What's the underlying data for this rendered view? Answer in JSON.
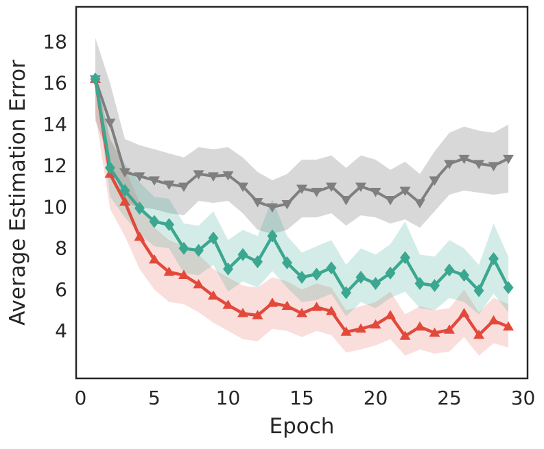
{
  "figure": {
    "background": "#ffffff"
  },
  "chart_data": {
    "type": "line",
    "title": "",
    "xlabel": "Epoch",
    "ylabel": "Average Estimation Error",
    "xlim": [
      -0.3,
      30.3
    ],
    "ylim": [
      1.7,
      19.7
    ],
    "xticks": [
      0,
      5,
      10,
      15,
      20,
      25,
      30
    ],
    "yticks": [
      4,
      6,
      8,
      10,
      12,
      14,
      16,
      18
    ],
    "grid": false,
    "legend": "none",
    "x": [
      1,
      2,
      3,
      4,
      5,
      6,
      7,
      8,
      9,
      10,
      11,
      12,
      13,
      14,
      15,
      16,
      17,
      18,
      19,
      20,
      21,
      22,
      23,
      24,
      25,
      26,
      27,
      28,
      29
    ],
    "style": {
      "spine_color": "#262626",
      "text_color": "#262626",
      "tick_font_size": 28,
      "label_font_size": 31
    },
    "series": [
      {
        "name": "gray",
        "marker": "triangle-down",
        "color": "#7f7f7f",
        "band_opacity": 0.3,
        "line_width": 4,
        "values": [
          16.2,
          14.1,
          11.7,
          11.5,
          11.3,
          11.1,
          11.0,
          11.6,
          11.5,
          11.55,
          11.0,
          10.25,
          10.0,
          10.15,
          10.9,
          10.75,
          11.0,
          10.35,
          11.0,
          10.75,
          10.35,
          10.8,
          10.2,
          11.3,
          12.1,
          12.35,
          12.1,
          12.0,
          12.35
        ],
        "band_upper": [
          18.2,
          16.0,
          13.3,
          13.0,
          12.8,
          12.6,
          12.4,
          12.9,
          12.8,
          12.9,
          12.4,
          11.7,
          11.3,
          11.6,
          12.3,
          12.3,
          12.5,
          11.9,
          12.5,
          12.3,
          11.8,
          12.2,
          11.6,
          12.7,
          13.6,
          13.9,
          13.7,
          13.6,
          14.0
        ],
        "band_lower": [
          14.2,
          12.3,
          10.2,
          10.0,
          9.9,
          9.7,
          9.6,
          10.3,
          10.2,
          10.3,
          9.7,
          8.9,
          8.7,
          8.9,
          9.5,
          9.5,
          9.7,
          9.1,
          9.6,
          9.5,
          9.2,
          9.4,
          9.0,
          9.8,
          10.6,
          10.8,
          10.7,
          10.6,
          10.7
        ]
      },
      {
        "name": "red",
        "marker": "triangle-up",
        "color": "#e2493b",
        "band_opacity": 0.18,
        "line_width": 4.5,
        "values": [
          16.2,
          11.6,
          10.25,
          8.55,
          7.45,
          6.85,
          6.7,
          6.25,
          5.7,
          5.25,
          4.85,
          4.75,
          5.35,
          5.2,
          4.85,
          5.15,
          4.95,
          3.95,
          4.1,
          4.3,
          4.75,
          3.75,
          4.2,
          3.9,
          4.05,
          4.85,
          3.8,
          4.5,
          4.2
        ],
        "band_upper": [
          16.45,
          13.3,
          11.9,
          10.2,
          9.0,
          8.4,
          8.1,
          7.7,
          7.0,
          6.6,
          6.2,
          6.1,
          6.6,
          6.4,
          6.0,
          6.3,
          6.1,
          5.0,
          5.2,
          5.4,
          5.9,
          4.8,
          5.2,
          5.0,
          5.1,
          6.0,
          4.9,
          5.6,
          5.3
        ],
        "band_lower": [
          14.5,
          9.9,
          8.6,
          7.0,
          6.0,
          5.4,
          5.3,
          4.9,
          4.4,
          4.0,
          3.6,
          3.5,
          4.1,
          4.0,
          3.7,
          4.0,
          3.8,
          2.95,
          3.1,
          3.3,
          3.6,
          2.8,
          3.1,
          2.9,
          3.0,
          3.7,
          2.8,
          3.4,
          3.2
        ]
      },
      {
        "name": "teal",
        "marker": "diamond",
        "color": "#3ca791",
        "band_opacity": 0.22,
        "line_width": 4.5,
        "values": [
          16.2,
          11.9,
          10.8,
          9.95,
          9.3,
          9.15,
          8.0,
          7.9,
          8.5,
          7.0,
          7.7,
          7.35,
          8.6,
          7.3,
          6.6,
          6.75,
          7.05,
          5.85,
          6.6,
          6.3,
          6.8,
          7.55,
          6.3,
          6.2,
          6.95,
          6.7,
          5.95,
          7.5,
          6.1
        ],
        "band_upper": [
          16.45,
          13.3,
          12.1,
          11.2,
          10.5,
          10.4,
          9.2,
          9.1,
          9.8,
          8.4,
          8.9,
          8.6,
          10.4,
          8.6,
          7.8,
          8.1,
          8.4,
          7.2,
          8.0,
          7.7,
          8.2,
          9.3,
          7.7,
          7.6,
          8.4,
          8.0,
          7.2,
          9.2,
          7.6
        ],
        "band_lower": [
          15.95,
          10.5,
          9.5,
          8.7,
          8.1,
          8.0,
          6.8,
          6.7,
          7.2,
          5.9,
          6.4,
          6.1,
          6.9,
          6.1,
          5.4,
          5.5,
          5.8,
          4.7,
          5.4,
          5.1,
          5.6,
          5.9,
          5.1,
          5.0,
          5.6,
          5.4,
          4.8,
          5.8,
          4.9
        ]
      }
    ]
  }
}
